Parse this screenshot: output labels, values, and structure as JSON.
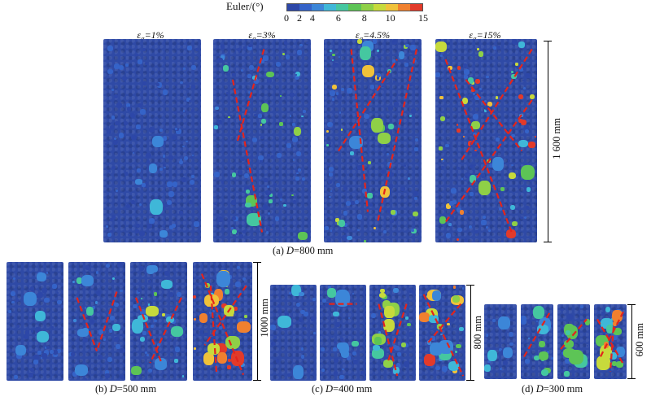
{
  "colorbar": {
    "title": "Euler/(°)",
    "ticks": [
      "0",
      "2",
      "4",
      "6",
      "8",
      "10",
      "15"
    ],
    "colors": [
      "#2d47a8",
      "#3563c8",
      "#3c86d8",
      "#3fb7d8",
      "#45c7a0",
      "#5dc456",
      "#8fd047",
      "#c7da3c",
      "#f0c23a",
      "#f0802f",
      "#e23a2a"
    ]
  },
  "strain_labels": [
    "εa=1%",
    "εa=3%",
    "εa=4.5%",
    "εa=15%"
  ],
  "strain_labels_parts": [
    {
      "sym": "ε",
      "sub": "a",
      "val": "=1%"
    },
    {
      "sym": "ε",
      "sub": "a",
      "val": "=3%"
    },
    {
      "sym": "ε",
      "sub": "a",
      "val": "=4.5%"
    },
    {
      "sym": "ε",
      "sub": "a",
      "val": "=15%"
    }
  ],
  "captions": {
    "a": {
      "prefix": "(a) ",
      "var": "D",
      "rest": "=800 mm"
    },
    "b": {
      "prefix": "(b) ",
      "var": "D",
      "rest": "=500 mm"
    },
    "c": {
      "prefix": "(c) ",
      "var": "D",
      "rest": "=400 mm"
    },
    "d": {
      "prefix": "(d) ",
      "var": "D",
      "rest": "=300 mm"
    }
  },
  "dimensions": {
    "a": "1 600 mm",
    "b": "1000 mm",
    "c": "800 mm",
    "d": "600 mm"
  }
}
